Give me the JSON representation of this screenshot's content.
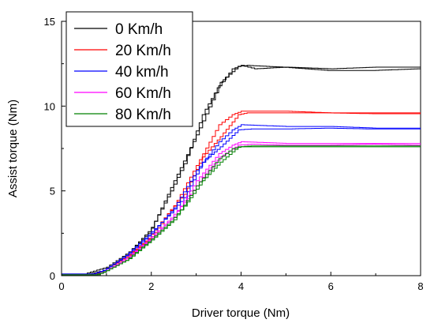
{
  "chart_data": {
    "type": "line",
    "title": "",
    "xlabel": "Driver torque (Nm)",
    "ylabel": "Assist torque (Nm)",
    "xlim": [
      0,
      8
    ],
    "ylim": [
      0,
      15
    ],
    "xticks": [
      0,
      2,
      4,
      6,
      8
    ],
    "yticks": [
      0,
      5,
      10,
      15
    ],
    "grid": false,
    "legend_position": "top-left",
    "series": [
      {
        "name": "0 Km/h",
        "color": "#000000",
        "loading": [
          [
            0,
            0.1
          ],
          [
            0.5,
            0.1
          ],
          [
            1,
            0.5
          ],
          [
            1.5,
            1.4
          ],
          [
            2,
            2.8
          ],
          [
            2.5,
            5.6
          ],
          [
            3,
            8.3
          ],
          [
            3.5,
            11.2
          ],
          [
            3.8,
            12.2
          ],
          [
            4,
            12.4
          ],
          [
            4.3,
            12.2
          ],
          [
            5,
            12.3
          ],
          [
            6,
            12.2
          ],
          [
            7,
            12.3
          ],
          [
            8,
            12.3
          ]
        ],
        "unloading": [
          [
            8,
            12.2
          ],
          [
            7,
            12.1
          ],
          [
            6,
            12.1
          ],
          [
            5,
            12.3
          ],
          [
            4.2,
            12.4
          ],
          [
            4,
            12.35
          ],
          [
            3.6,
            11.4
          ],
          [
            3.2,
            9.5
          ],
          [
            2.8,
            6.6
          ],
          [
            2.5,
            5.0
          ],
          [
            2,
            2.5
          ],
          [
            1.5,
            1.2
          ],
          [
            1,
            0.3
          ],
          [
            0.6,
            0.05
          ],
          [
            0,
            0.1
          ]
        ]
      },
      {
        "name": "20 Km/h",
        "color": "#ff0000",
        "loading": [
          [
            0,
            0.05
          ],
          [
            0.7,
            0.05
          ],
          [
            1,
            0.4
          ],
          [
            1.5,
            1.2
          ],
          [
            2,
            2.3
          ],
          [
            2.5,
            4.1
          ],
          [
            3,
            6.5
          ],
          [
            3.5,
            8.9
          ],
          [
            3.8,
            9.5
          ],
          [
            4,
            9.7
          ],
          [
            5,
            9.7
          ],
          [
            6,
            9.6
          ],
          [
            7,
            9.6
          ],
          [
            8,
            9.6
          ]
        ],
        "unloading": [
          [
            8,
            9.55
          ],
          [
            7,
            9.55
          ],
          [
            6,
            9.6
          ],
          [
            5,
            9.6
          ],
          [
            4.2,
            9.6
          ],
          [
            4,
            9.5
          ],
          [
            3.6,
            8.2
          ],
          [
            3.2,
            7.0
          ],
          [
            2.8,
            4.8
          ],
          [
            2.5,
            3.9
          ],
          [
            2,
            2.2
          ],
          [
            1.5,
            1.1
          ],
          [
            1,
            0.3
          ],
          [
            0.7,
            0.05
          ],
          [
            0,
            0.05
          ]
        ]
      },
      {
        "name": "40 km/h",
        "color": "#0000ff",
        "loading": [
          [
            0,
            0.1
          ],
          [
            0.7,
            0.1
          ],
          [
            1,
            0.4
          ],
          [
            1.5,
            1.3
          ],
          [
            2,
            2.5
          ],
          [
            2.5,
            4.0
          ],
          [
            3,
            6.2
          ],
          [
            3.5,
            7.9
          ],
          [
            3.8,
            8.6
          ],
          [
            4,
            8.9
          ],
          [
            5,
            8.8
          ],
          [
            6,
            8.8
          ],
          [
            7,
            8.7
          ],
          [
            8,
            8.7
          ]
        ],
        "unloading": [
          [
            8,
            8.65
          ],
          [
            7,
            8.65
          ],
          [
            6,
            8.7
          ],
          [
            5,
            8.65
          ],
          [
            4.3,
            8.65
          ],
          [
            4,
            8.6
          ],
          [
            3.6,
            7.6
          ],
          [
            3.2,
            6.7
          ],
          [
            2.8,
            4.6
          ],
          [
            2.5,
            3.7
          ],
          [
            2,
            2.4
          ],
          [
            1.5,
            1.2
          ],
          [
            1,
            0.3
          ],
          [
            0.7,
            0.05
          ],
          [
            0,
            0.1
          ]
        ]
      },
      {
        "name": "60 Km/h",
        "color": "#ff00ff",
        "loading": [
          [
            0,
            0.05
          ],
          [
            0.8,
            0.05
          ],
          [
            1,
            0.3
          ],
          [
            1.5,
            1.1
          ],
          [
            2,
            2.2
          ],
          [
            2.5,
            3.5
          ],
          [
            3,
            5.6
          ],
          [
            3.5,
            7.2
          ],
          [
            3.8,
            7.7
          ],
          [
            4,
            7.9
          ],
          [
            5,
            7.8
          ],
          [
            6,
            7.8
          ],
          [
            7,
            7.8
          ],
          [
            8,
            7.8
          ]
        ],
        "unloading": [
          [
            8,
            7.7
          ],
          [
            7,
            7.75
          ],
          [
            6,
            7.7
          ],
          [
            5,
            7.7
          ],
          [
            4.3,
            7.75
          ],
          [
            4,
            7.7
          ],
          [
            3.6,
            7.0
          ],
          [
            3.2,
            5.8
          ],
          [
            2.8,
            4.3
          ],
          [
            2.5,
            3.4
          ],
          [
            2,
            2.1
          ],
          [
            1.5,
            1.0
          ],
          [
            1,
            0.2
          ],
          [
            0.8,
            0.05
          ],
          [
            0,
            0.05
          ]
        ]
      },
      {
        "name": "80 Km/h",
        "color": "#008000",
        "loading": [
          [
            0,
            0.05
          ],
          [
            0.8,
            0.05
          ],
          [
            1,
            0.3
          ],
          [
            1.5,
            1.0
          ],
          [
            2,
            2.1
          ],
          [
            2.5,
            3.3
          ],
          [
            3,
            5.3
          ],
          [
            3.5,
            6.9
          ],
          [
            3.8,
            7.5
          ],
          [
            4,
            7.6
          ],
          [
            5,
            7.6
          ],
          [
            6,
            7.6
          ],
          [
            7,
            7.6
          ],
          [
            8,
            7.6
          ]
        ],
        "unloading": [
          [
            8,
            7.65
          ],
          [
            7,
            7.65
          ],
          [
            6,
            7.65
          ],
          [
            5,
            7.65
          ],
          [
            4.3,
            7.65
          ],
          [
            4,
            7.6
          ],
          [
            3.6,
            6.7
          ],
          [
            3.2,
            5.6
          ],
          [
            2.8,
            4.1
          ],
          [
            2.5,
            3.2
          ],
          [
            2,
            2.0
          ],
          [
            1.5,
            0.9
          ],
          [
            1,
            0.2
          ],
          [
            0.8,
            0.05
          ],
          [
            0,
            0.05
          ]
        ]
      }
    ]
  }
}
